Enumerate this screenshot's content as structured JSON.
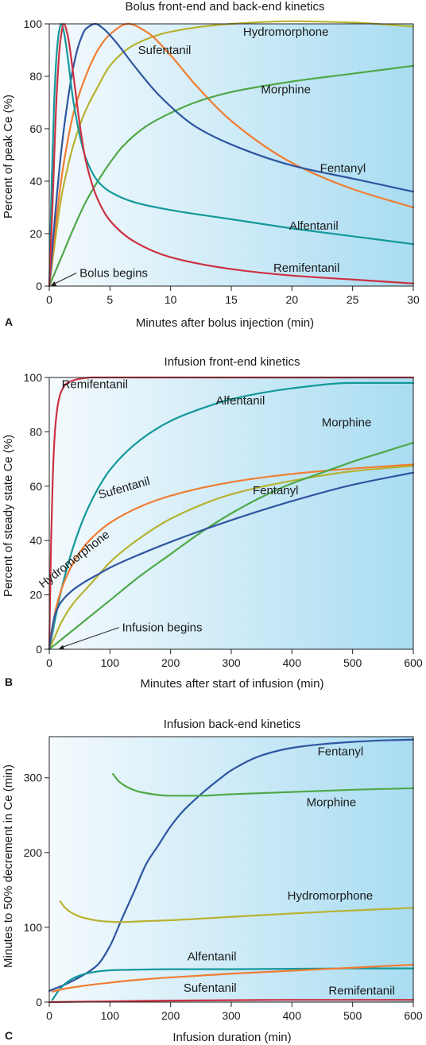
{
  "colors": {
    "Hydromorphone": "#b8b232",
    "Sufentanil": "#f07d32",
    "Morphine": "#4fa848",
    "Fentanyl": "#2f55a0",
    "Alfentanil": "#14989a",
    "Remifentanil": "#cc3142",
    "bg_light": "#f4fafd",
    "bg_dark": "#a9dcf2"
  },
  "chart_data": [
    {
      "id": "A",
      "type": "line",
      "panel_letter": "A",
      "title": "Bolus front-end and back-end kinetics",
      "xlabel": "Minutes after bolus injection (min)",
      "ylabel": "Percent of peak Ce (%)",
      "xlim": [
        0,
        30
      ],
      "ylim": [
        0,
        100
      ],
      "xticks": [
        0,
        5,
        10,
        15,
        20,
        25,
        30
      ],
      "yticks": [
        0,
        20,
        40,
        60,
        80,
        100
      ],
      "grid": false,
      "annotations": [
        {
          "id": "bolus-begins",
          "text": "Bolus begins",
          "x": 2.5,
          "y": 5,
          "arrow_to": [
            0.1,
            0
          ]
        }
      ],
      "series": [
        {
          "name": "Hydromorphone",
          "label_at": [
            19.5,
            95.5
          ],
          "x": [
            0,
            0.5,
            1,
            1.5,
            2,
            3,
            4,
            5,
            7,
            10,
            15,
            20,
            25,
            30
          ],
          "y": [
            0,
            18,
            34,
            45,
            54,
            67,
            76,
            84,
            92,
            97,
            100,
            101,
            100.5,
            99
          ]
        },
        {
          "name": "Sufentanil",
          "label_at": [
            9.5,
            88.5
          ],
          "x": [
            0,
            0.5,
            1,
            1.5,
            2,
            3,
            4,
            5,
            6.5,
            8,
            10,
            12,
            15,
            20,
            25,
            30
          ],
          "y": [
            0,
            22,
            41,
            55,
            66,
            80,
            90,
            96,
            100,
            97,
            88,
            77,
            63,
            47,
            37,
            30
          ]
        },
        {
          "name": "Morphine",
          "label_at": [
            19.5,
            73.5
          ],
          "x": [
            0,
            1,
            2,
            3,
            4,
            5,
            6,
            8,
            10,
            12,
            15,
            20,
            25,
            30
          ],
          "y": [
            0,
            11,
            22,
            32,
            40,
            47,
            53,
            61,
            66,
            70,
            74,
            78,
            81,
            84
          ]
        },
        {
          "name": "Fentanyl",
          "label_at": [
            24.2,
            43.5
          ],
          "x": [
            0,
            0.5,
            1,
            1.5,
            2,
            2.5,
            3,
            3.8,
            4.5,
            5.5,
            7,
            9,
            12,
            15,
            20,
            25,
            30
          ],
          "y": [
            0,
            28,
            52,
            70,
            84,
            93,
            98,
            100,
            98,
            93,
            84,
            73,
            61,
            54,
            46,
            41,
            36
          ]
        },
        {
          "name": "Alfentanil",
          "label_at": [
            21.8,
            21.5
          ],
          "x": [
            0,
            0.2,
            0.4,
            0.6,
            0.8,
            1,
            1.2,
            1.5,
            2,
            3,
            4,
            5,
            7,
            10,
            15,
            20,
            25,
            30
          ],
          "y": [
            0,
            40,
            70,
            88,
            97,
            100,
            97,
            88,
            70,
            49,
            40,
            36,
            32,
            29,
            25.5,
            22,
            19,
            16
          ]
        },
        {
          "name": "Remifentanil",
          "label_at": [
            21.2,
            5.5
          ],
          "x": [
            0,
            0.3,
            0.6,
            0.9,
            1.2,
            1.5,
            2,
            2.5,
            3,
            4,
            5,
            7,
            10,
            15,
            20,
            25,
            30
          ],
          "y": [
            0,
            35,
            72,
            93,
            100,
            96,
            80,
            62,
            48,
            33,
            25,
            17,
            11,
            6.5,
            4,
            2.5,
            1
          ]
        }
      ]
    },
    {
      "id": "B",
      "type": "line",
      "panel_letter": "B",
      "title": "Infusion front-end kinetics",
      "xlabel": "Minutes after start of infusion (min)",
      "ylabel": "Percent of steady state Ce (%)",
      "xlim": [
        0,
        600
      ],
      "ylim": [
        0,
        100
      ],
      "xticks": [
        0,
        100,
        200,
        300,
        400,
        500,
        600
      ],
      "yticks": [
        0,
        20,
        40,
        60,
        80,
        100
      ],
      "grid": false,
      "annotations": [
        {
          "id": "infusion-begins",
          "text": "Infusion begins",
          "x": 120,
          "y": 8,
          "arrow_to": [
            15,
            0
          ]
        }
      ],
      "series": [
        {
          "name": "Remifentanil",
          "label_at": [
            75,
            96
          ],
          "label_rotate": 0,
          "x": [
            0,
            3,
            6,
            10,
            15,
            20,
            30,
            50,
            70,
            100,
            200,
            400,
            600
          ],
          "y": [
            0,
            40,
            65,
            82,
            91,
            95,
            98,
            99.5,
            100,
            100,
            100,
            100,
            100
          ]
        },
        {
          "name": "Alfentanil",
          "label_at": [
            315,
            90
          ],
          "label_rotate": 0,
          "x": [
            0,
            20,
            40,
            60,
            80,
            100,
            150,
            200,
            250,
            300,
            400,
            500,
            600
          ],
          "y": [
            0,
            22,
            38,
            50,
            59,
            66,
            77,
            84,
            88.5,
            92,
            96,
            98,
            98
          ]
        },
        {
          "name": "Sufentanil",
          "label_at": [
            125,
            58
          ],
          "label_rotate": -16,
          "x": [
            0,
            10,
            20,
            40,
            60,
            80,
            100,
            150,
            200,
            300,
            400,
            500,
            600
          ],
          "y": [
            0,
            14,
            22,
            32,
            38.5,
            43,
            46.5,
            52.5,
            56.5,
            61.5,
            64.5,
            66.5,
            68
          ]
        },
        {
          "name": "Hydromorphone",
          "label_at": [
            45,
            32
          ],
          "label_rotate": -38,
          "x": [
            0,
            10,
            20,
            40,
            60,
            80,
            100,
            150,
            200,
            300,
            400,
            500,
            600
          ],
          "y": [
            0,
            5,
            10,
            17,
            22,
            27,
            32,
            41,
            48,
            57,
            62,
            65.5,
            67.5
          ]
        },
        {
          "name": "Morphine",
          "label_at": [
            490,
            82
          ],
          "label_rotate": 0,
          "x": [
            0,
            50,
            100,
            150,
            200,
            250,
            300,
            350,
            400,
            450,
            500,
            550,
            600
          ],
          "y": [
            0,
            9,
            18,
            27,
            35,
            43,
            50,
            56,
            61,
            65,
            69,
            72.5,
            76
          ]
        },
        {
          "name": "Fentanyl",
          "label_at": [
            373,
            57
          ],
          "label_rotate": 0,
          "x": [
            0,
            5,
            10,
            20,
            40,
            60,
            80,
            100,
            150,
            200,
            300,
            400,
            500,
            600
          ],
          "y": [
            0,
            8,
            13,
            17.5,
            22,
            25,
            27.5,
            30,
            35,
            39.5,
            47.5,
            54.5,
            60.5,
            65
          ]
        }
      ]
    },
    {
      "id": "C",
      "type": "line",
      "panel_letter": "C",
      "title": "Infusion back-end kinetics",
      "xlabel": "Infusion duration (min)",
      "ylabel": "Minutes to 50% decrement in Ce (min)",
      "xlim": [
        0,
        600
      ],
      "ylim": [
        0,
        355
      ],
      "xticks": [
        0,
        100,
        200,
        300,
        400,
        500,
        600
      ],
      "yticks": [
        0,
        100,
        200,
        300
      ],
      "grid": false,
      "annotations": [],
      "series": [
        {
          "name": "Fentanyl",
          "label_at": [
            480,
            330
          ],
          "label_rotate": 0,
          "x": [
            0,
            30,
            60,
            80,
            100,
            120,
            140,
            160,
            180,
            200,
            220,
            250,
            280,
            300,
            350,
            400,
            450,
            500,
            550,
            600
          ],
          "y": [
            15,
            25,
            38,
            50,
            75,
            112,
            148,
            185,
            210,
            235,
            255,
            278,
            298,
            310,
            330,
            340,
            345,
            348,
            350,
            351
          ]
        },
        {
          "name": "Morphine",
          "label_at": [
            465,
            262
          ],
          "label_rotate": 0,
          "x": [
            105,
            115,
            130,
            150,
            200,
            250,
            300,
            400,
            500,
            600
          ],
          "y": [
            305,
            295,
            287,
            281,
            276,
            276,
            278,
            281,
            284,
            286
          ]
        },
        {
          "name": "Hydromorphone",
          "label_at": [
            463,
            137
          ],
          "label_rotate": 0,
          "x": [
            18,
            25,
            40,
            60,
            90,
            120,
            150,
            200,
            300,
            400,
            500,
            600
          ],
          "y": [
            135,
            127,
            118,
            112,
            108,
            107,
            108,
            109.5,
            114,
            118.5,
            122.5,
            126
          ]
        },
        {
          "name": "Alfentanil",
          "label_at": [
            268,
            56
          ],
          "label_rotate": 0,
          "x": [
            5,
            20,
            40,
            60,
            80,
            100,
            150,
            200,
            300,
            400,
            500,
            600
          ],
          "y": [
            3,
            20,
            32,
            38,
            41,
            42.5,
            43.5,
            44,
            44,
            44.5,
            45,
            45
          ]
        },
        {
          "name": "Sufentanil",
          "label_at": [
            265,
            14
          ],
          "label_rotate": 0,
          "x": [
            5,
            20,
            50,
            100,
            150,
            200,
            300,
            400,
            500,
            600
          ],
          "y": [
            14,
            17,
            21,
            26,
            30,
            33,
            38,
            42,
            46,
            50
          ]
        },
        {
          "name": "Remifentanil",
          "label_at": [
            515,
            10
          ],
          "label_rotate": 0,
          "x": [
            0,
            100,
            200,
            300,
            400,
            500,
            600
          ],
          "y": [
            0,
            1,
            2,
            2.5,
            3,
            3,
            3
          ]
        }
      ]
    }
  ]
}
